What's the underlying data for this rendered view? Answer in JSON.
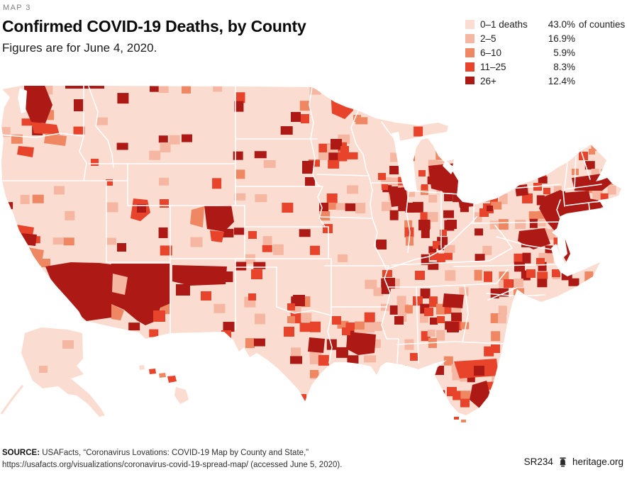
{
  "kicker": "MAP 3",
  "title": "Confirmed COVID-19 Deaths, by County",
  "subtitle": "Figures are for June 4, 2020.",
  "legend": {
    "items": [
      {
        "label": "0–1 deaths",
        "pct": "43.0%",
        "suffix": "of counties",
        "color": "#fadcd1"
      },
      {
        "label": "2–5",
        "pct": "16.9%",
        "suffix": "",
        "color": "#f6b7a2"
      },
      {
        "label": "6–10",
        "pct": "5.9%",
        "suffix": "",
        "color": "#ef8763"
      },
      {
        "label": "11–25",
        "pct": "8.3%",
        "suffix": "",
        "color": "#e8432b"
      },
      {
        "label": "26+",
        "pct": "12.4%",
        "suffix": "",
        "color": "#ad1a15"
      }
    ]
  },
  "footer": {
    "source_label": "SOURCE:",
    "source_rest": " USAFacts, “Coronavirus Lovations: COVID-19 Map by County and State,”",
    "source_line2": "https://usafacts.org/visualizations/coronavirus-covid-19-spread-map/ (accessed June 5, 2020).",
    "report_id": "SR234",
    "site": "heritage.org"
  },
  "chart_data": {
    "type": "heatmap",
    "subtype": "us-county-choropleth",
    "title": "Confirmed COVID-19 Deaths, by County",
    "as_of_date": "June 4, 2020",
    "legend_position": "top-right",
    "buckets": [
      {
        "range": "0–1 deaths",
        "share_of_counties_pct": 43.0,
        "color": "#fadcd1"
      },
      {
        "range": "2–5",
        "share_of_counties_pct": 16.9,
        "color": "#f6b7a2"
      },
      {
        "range": "6–10",
        "share_of_counties_pct": 5.9,
        "color": "#ef8763"
      },
      {
        "range": "11–25",
        "share_of_counties_pct": 8.3,
        "color": "#e8432b"
      },
      {
        "range": "26+",
        "share_of_counties_pct": 12.4,
        "color": "#ad1a15"
      }
    ],
    "high_death_clusters": [
      "Northeast corridor (NYC/NJ/CT/MA)",
      "Boston",
      "Southeast Michigan (Detroit)",
      "Chicago",
      "Southern California",
      "Arizona",
      "Puget Sound (Seattle)",
      "Denver area",
      "Navajo Nation (NM/AZ)",
      "New Orleans / south Louisiana",
      "Georgia (Atlanta, Albany)",
      "South Florida",
      "Mississippi Delta / Memphis"
    ]
  },
  "map": {
    "palette": [
      "#fadcd1",
      "#f6b7a2",
      "#ef8763",
      "#e8432b",
      "#ad1a15"
    ]
  }
}
